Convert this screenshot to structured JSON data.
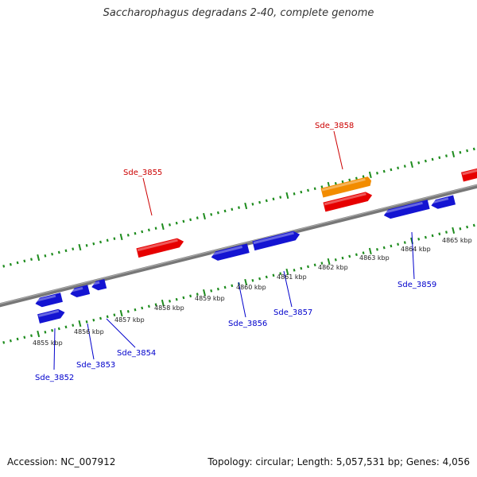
{
  "title": "Saccharophagus degradans 2-40, complete genome",
  "footer": {
    "accession": "Accession: NC_007912",
    "summary": "Topology: circular; Length: 5,057,531 bp; Genes: 4,056"
  },
  "colors": {
    "backbone": "#777777",
    "tick": "#1e8c1e",
    "forward_gene": "#e60000",
    "reverse_gene": "#1414d2",
    "highlight_gene": "#f28c00",
    "forward_label": "#cc0000",
    "reverse_label": "#0000cc"
  },
  "scale_labels": [
    "4855 kbp",
    "4856 kbp",
    "4857 kbp",
    "4858 kbp",
    "4859 kbp",
    "4860 kbp",
    "4861 kbp",
    "4862 kbp",
    "4863 kbp",
    "4864 kbp",
    "4865 kbp"
  ],
  "gene_labels": [
    {
      "name": "Sde_3855",
      "strand": "forward"
    },
    {
      "name": "Sde_3858",
      "strand": "forward"
    },
    {
      "name": "Sde_3852",
      "strand": "reverse"
    },
    {
      "name": "Sde_3853",
      "strand": "reverse"
    },
    {
      "name": "Sde_3854",
      "strand": "reverse"
    },
    {
      "name": "Sde_3856",
      "strand": "reverse"
    },
    {
      "name": "Sde_3857",
      "strand": "reverse"
    },
    {
      "name": "Sde_3859",
      "strand": "reverse"
    }
  ]
}
